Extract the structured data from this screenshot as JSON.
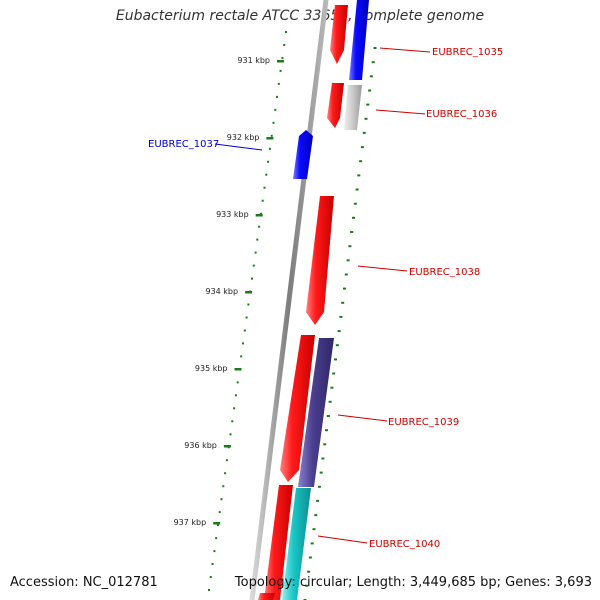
{
  "title": "Eubacterium rectale ATCC 33656, complete genome",
  "footer": {
    "accession": "Accession: NC_012781",
    "topology": "Topology: circular; Length: 3,449,685 bp; Genes: 3,693"
  },
  "ticks": [
    "931 kbp",
    "932 kbp",
    "933 kbp",
    "934 kbp",
    "935 kbp",
    "936 kbp",
    "937 kbp"
  ],
  "genes": [
    {
      "id": "EUBREC_1035",
      "color": "#cc0000"
    },
    {
      "id": "EUBREC_1036",
      "color": "#cc0000"
    },
    {
      "id": "EUBREC_1037",
      "color": "#0000cc"
    },
    {
      "id": "EUBREC_1038",
      "color": "#cc0000"
    },
    {
      "id": "EUBREC_1039",
      "color": "#cc0000"
    },
    {
      "id": "EUBREC_1040",
      "color": "#cc0000"
    }
  ],
  "feature_colors": {
    "cds_red": "#ff1a1a",
    "cds_blue": "#0a0aff",
    "grey": "#bfbfbf",
    "purple": "#4b3f8f",
    "cyan": "#19c6c6",
    "backbone": "#8a8a8a",
    "dots": "#1f7a1f"
  }
}
